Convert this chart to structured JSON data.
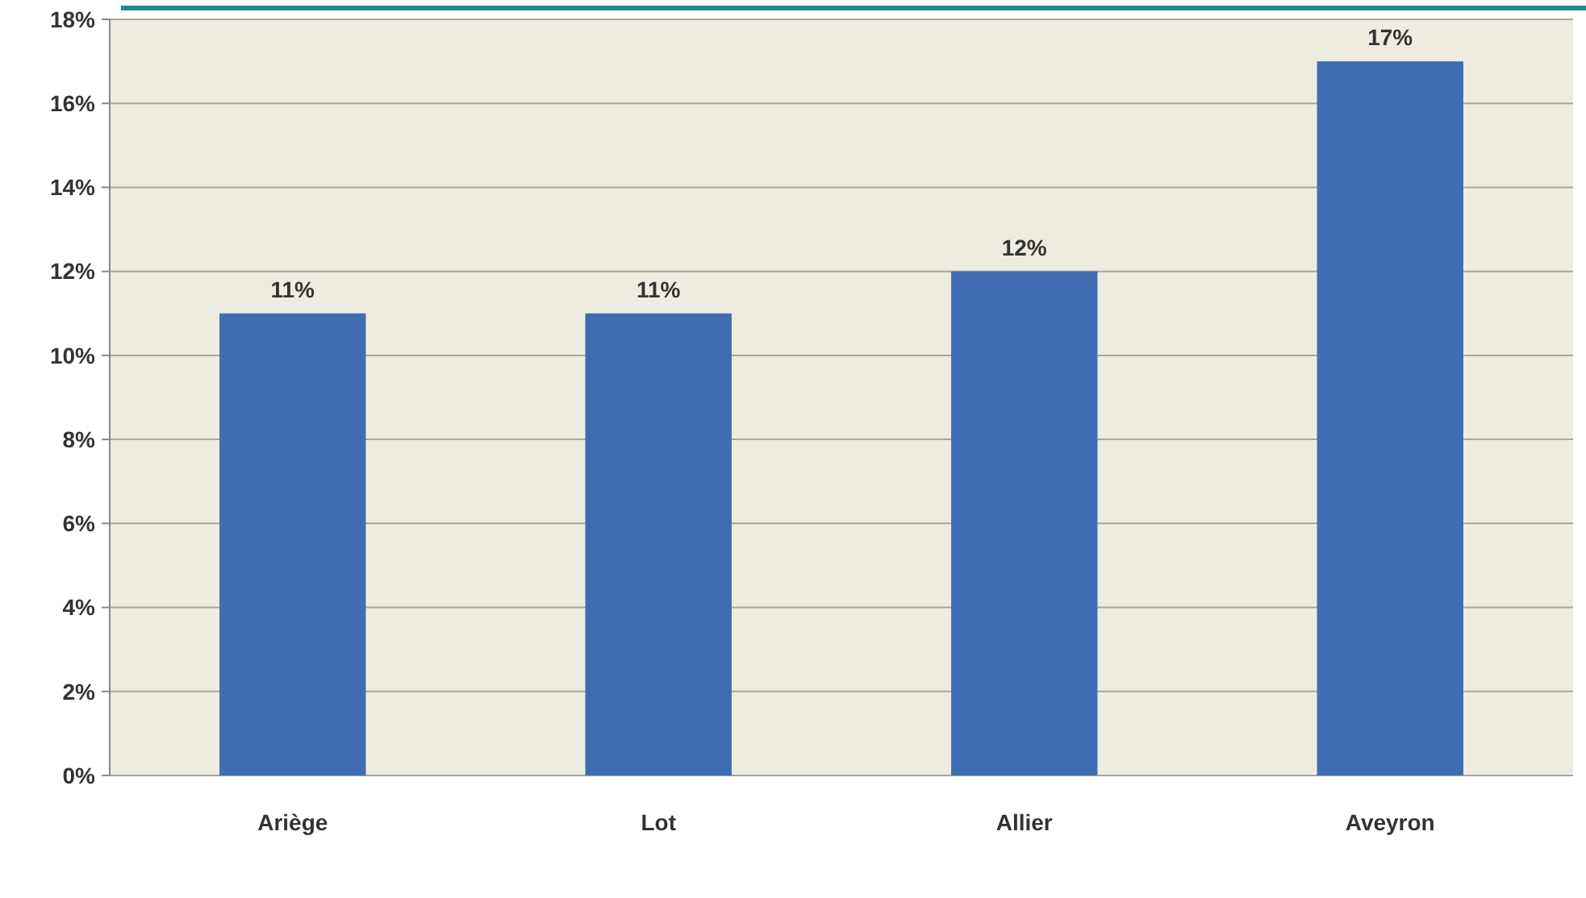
{
  "chart_data": {
    "type": "bar",
    "categories": [
      "Ariège",
      "Lot",
      "Allier",
      "Aveyron"
    ],
    "values": [
      11,
      11,
      12,
      17
    ],
    "color": "#3e6db3",
    "value_labels": [
      "11%",
      "11%",
      "12%",
      "17%"
    ],
    "ylim": [
      0,
      18
    ],
    "yticks": [
      {
        "value": 0,
        "label": "0%"
      },
      {
        "value": 2,
        "label": "2%"
      },
      {
        "value": 4,
        "label": "4%"
      },
      {
        "value": 6,
        "label": "6%"
      },
      {
        "value": 8,
        "label": "8%"
      },
      {
        "value": 10,
        "label": "10%"
      },
      {
        "value": 12,
        "label": "12%"
      },
      {
        "value": 14,
        "label": "14%"
      },
      {
        "value": 16,
        "label": "16%"
      },
      {
        "value": 18,
        "label": "18%"
      }
    ],
    "grid": "y"
  }
}
